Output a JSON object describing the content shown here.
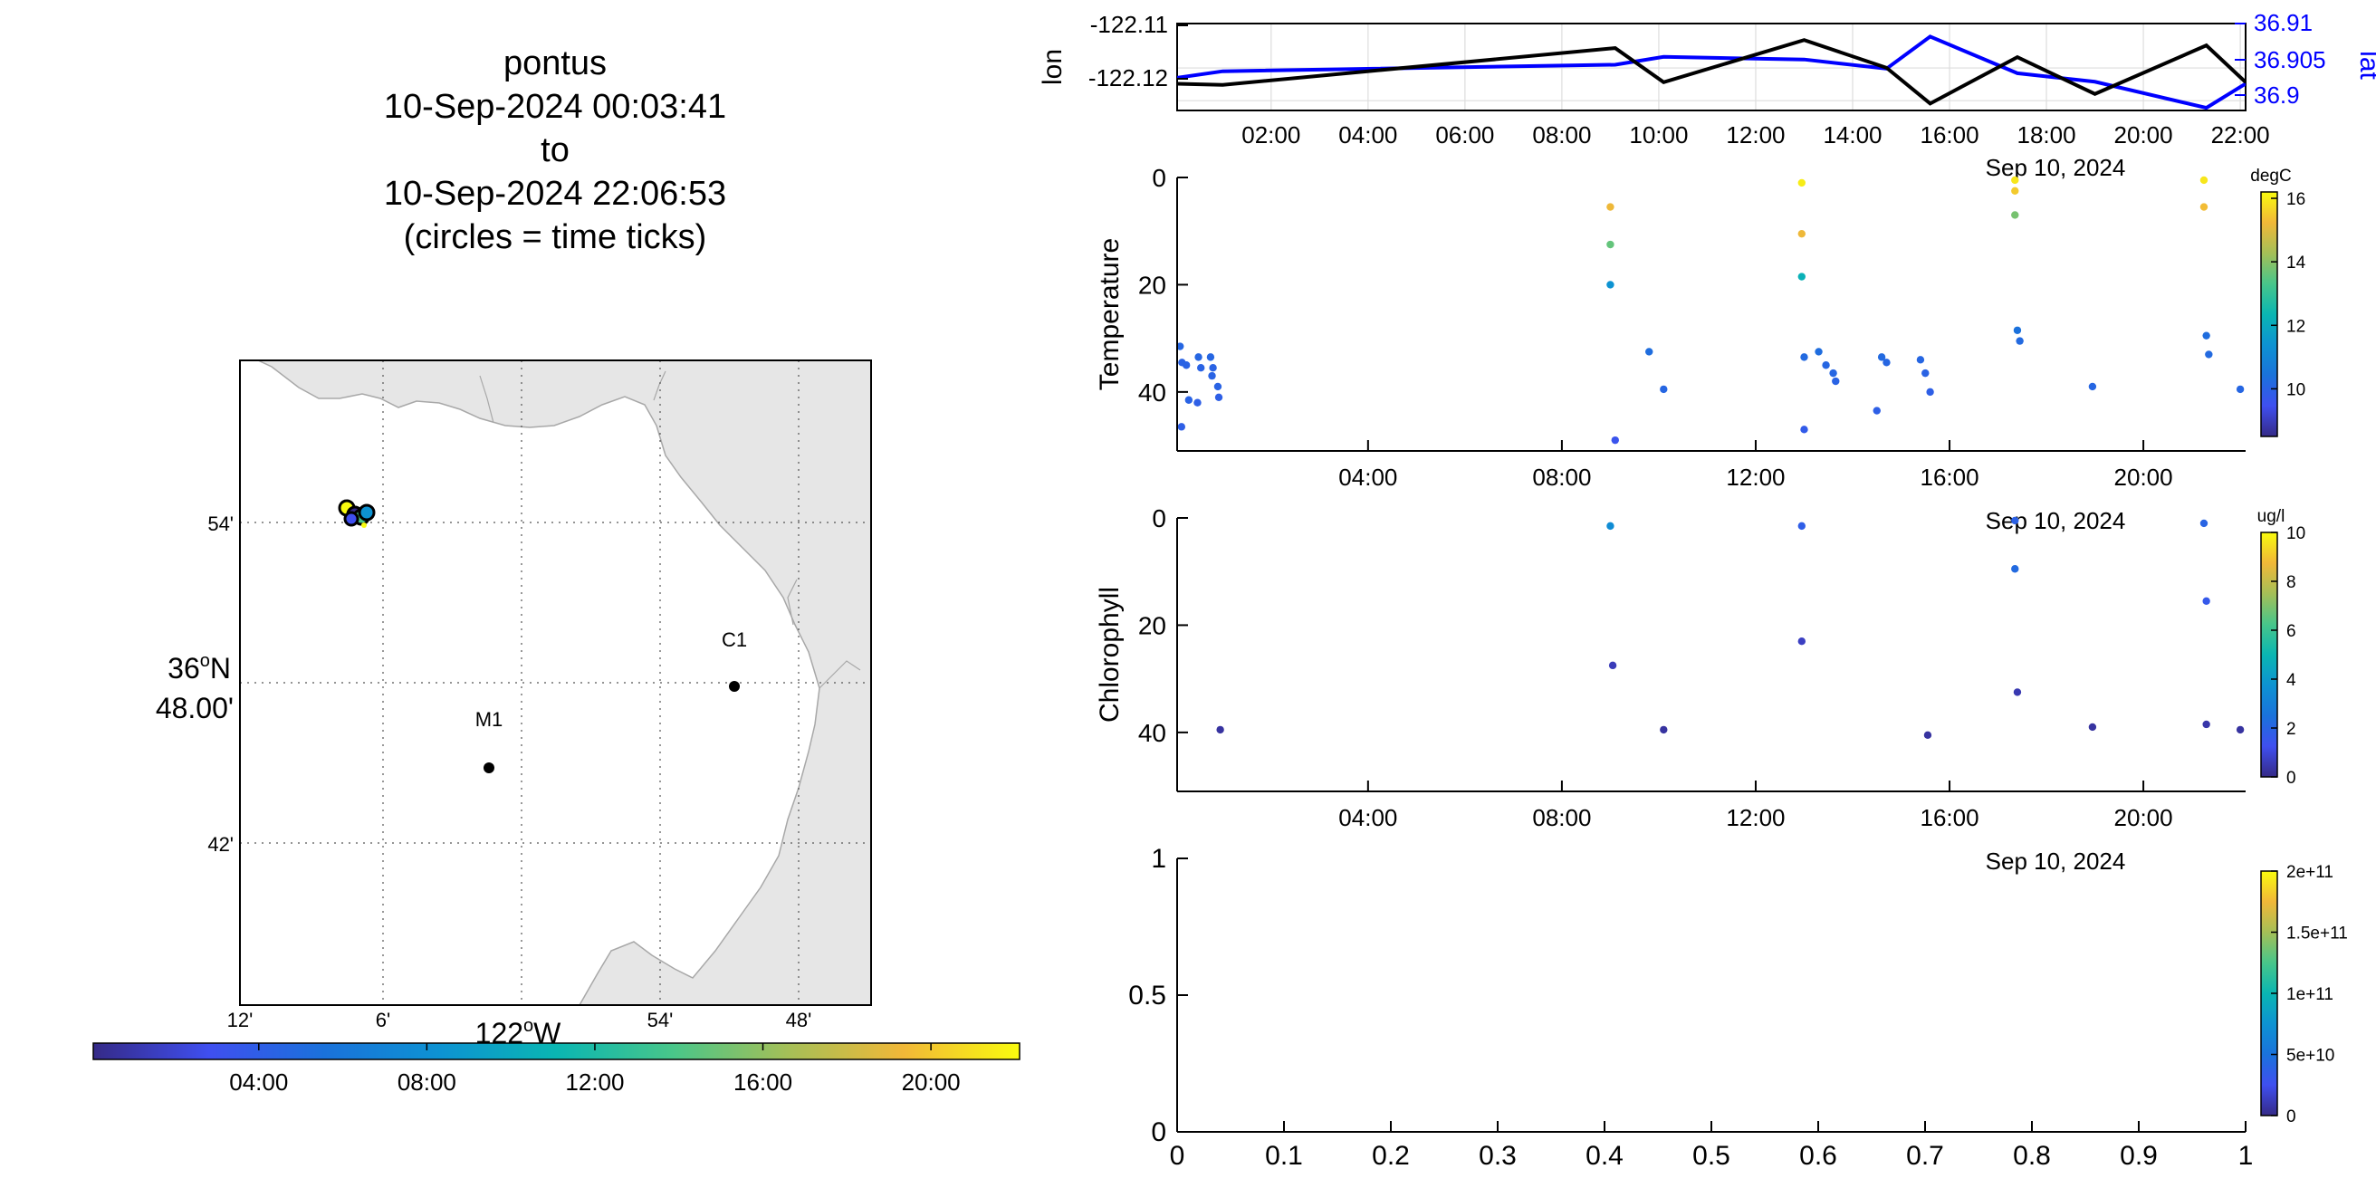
{
  "title_lines": [
    "pontus",
    "10-Sep-2024 00:03:41",
    "to",
    "10-Sep-2024 22:06:53",
    "(circles = time ticks)"
  ],
  "map": {
    "land_color": "#e6e6e6",
    "lat_ticks": [
      "54'",
      "36°N",
      "48.00'",
      "42'"
    ],
    "lon_ticks": [
      "12'",
      "6'",
      "122°W",
      "54'",
      "48'"
    ],
    "stations": [
      {
        "label": "C1",
        "lon": -121.843,
        "lat": 36.799
      },
      {
        "label": "M1",
        "lon": -122.003,
        "lat": 36.749
      }
    ],
    "track_positions": [
      {
        "lon": -122.12,
        "lat": 36.905
      },
      {
        "lon": -122.115,
        "lat": 36.904
      },
      {
        "lon": -122.11,
        "lat": 36.905
      },
      {
        "lon": -122.12,
        "lat": 36.906
      }
    ]
  },
  "time_colorbar": {
    "ticks": [
      "04:00",
      "08:00",
      "12:00",
      "16:00",
      "20:00"
    ],
    "range_hours": [
      0.06,
      22.11
    ]
  },
  "chart_data": [
    {
      "type": "line",
      "title": "",
      "xlabel": "Sep 10, 2024",
      "ylabel": "lon",
      "ylabel_right": "lat",
      "x_ticks": [
        "02:00",
        "04:00",
        "06:00",
        "08:00",
        "10:00",
        "12:00",
        "14:00",
        "16:00",
        "18:00",
        "20:00",
        "22:00"
      ],
      "y_ticks_left": [
        "-122.11",
        "-122.12"
      ],
      "y_ticks_right": [
        "36.91",
        "36.905",
        "36.9"
      ],
      "ylim_left": [
        -122.1245,
        -122.1082
      ],
      "ylim_right": [
        36.8985,
        36.9118
      ],
      "xlim_hours": [
        0.06,
        22.11
      ],
      "series": [
        {
          "name": "lon",
          "axis": "left",
          "color": "#000000",
          "x": [
            0.06,
            1.0,
            9.1,
            10.1,
            13.0,
            14.7,
            15.6,
            17.4,
            19.0,
            21.3,
            22.11
          ],
          "y": [
            -122.1195,
            -122.1197,
            -122.1128,
            -122.1192,
            -122.1113,
            -122.1165,
            -122.1232,
            -122.1145,
            -122.1214,
            -122.1123,
            -122.1192
          ]
        },
        {
          "name": "lat",
          "axis": "right",
          "color": "#0000ff",
          "x": [
            0.06,
            1.0,
            9.1,
            10.1,
            13.0,
            14.7,
            15.6,
            17.4,
            19.0,
            21.3,
            22.11
          ],
          "y": [
            36.9035,
            36.9045,
            36.9055,
            36.9067,
            36.9063,
            36.9049,
            36.9098,
            36.9042,
            36.9029,
            36.8989,
            36.9026
          ]
        }
      ]
    },
    {
      "type": "scatter",
      "title": "",
      "xlabel": "Sep 10, 2024",
      "ylabel": "Temperature",
      "x_ticks": [
        "04:00",
        "08:00",
        "12:00",
        "16:00",
        "20:00"
      ],
      "y_ticks": [
        "0",
        "20",
        "40"
      ],
      "ylim": [
        0,
        51
      ],
      "colorbar": {
        "unit": "degC",
        "ticks": [
          "10",
          "12",
          "14",
          "16"
        ],
        "range": [
          8.5,
          16.2
        ]
      },
      "points": [
        {
          "x": 0.12,
          "depth": 31.5,
          "v": 10.1
        },
        {
          "x": 0.16,
          "depth": 34.5,
          "v": 10.0
        },
        {
          "x": 0.25,
          "depth": 35.0,
          "v": 10.0
        },
        {
          "x": 0.15,
          "depth": 46.5,
          "v": 9.9
        },
        {
          "x": 0.3,
          "depth": 41.5,
          "v": 10.0
        },
        {
          "x": 0.5,
          "depth": 33.5,
          "v": 10.1
        },
        {
          "x": 0.55,
          "depth": 35.5,
          "v": 10.0
        },
        {
          "x": 0.48,
          "depth": 42.0,
          "v": 9.9
        },
        {
          "x": 0.75,
          "depth": 33.5,
          "v": 10.1
        },
        {
          "x": 0.8,
          "depth": 35.5,
          "v": 10.0
        },
        {
          "x": 0.9,
          "depth": 39.0,
          "v": 10.0
        },
        {
          "x": 0.92,
          "depth": 41.0,
          "v": 9.9
        },
        {
          "x": 0.78,
          "depth": 37.0,
          "v": 10.0
        },
        {
          "x": 9.0,
          "depth": 5.5,
          "v": 15.2
        },
        {
          "x": 9.0,
          "depth": 12.5,
          "v": 13.6
        },
        {
          "x": 9.0,
          "depth": 20.0,
          "v": 11.4
        },
        {
          "x": 9.1,
          "depth": 49.0,
          "v": 9.6
        },
        {
          "x": 9.8,
          "depth": 32.5,
          "v": 10.3
        },
        {
          "x": 10.1,
          "depth": 39.5,
          "v": 10.1
        },
        {
          "x": 12.95,
          "depth": 1.0,
          "v": 16.0
        },
        {
          "x": 12.95,
          "depth": 10.5,
          "v": 15.2
        },
        {
          "x": 12.95,
          "depth": 18.5,
          "v": 12.2
        },
        {
          "x": 13.0,
          "depth": 33.5,
          "v": 10.2
        },
        {
          "x": 13.3,
          "depth": 32.5,
          "v": 10.3
        },
        {
          "x": 13.45,
          "depth": 35.0,
          "v": 10.1
        },
        {
          "x": 13.6,
          "depth": 36.5,
          "v": 10.1
        },
        {
          "x": 13.65,
          "depth": 38.0,
          "v": 10.0
        },
        {
          "x": 13.0,
          "depth": 47.0,
          "v": 9.8
        },
        {
          "x": 14.6,
          "depth": 33.5,
          "v": 10.2
        },
        {
          "x": 14.7,
          "depth": 34.5,
          "v": 10.1
        },
        {
          "x": 14.5,
          "depth": 43.5,
          "v": 9.9
        },
        {
          "x": 15.4,
          "depth": 34.0,
          "v": 10.1
        },
        {
          "x": 15.5,
          "depth": 36.5,
          "v": 10.0
        },
        {
          "x": 15.6,
          "depth": 40.0,
          "v": 9.9
        },
        {
          "x": 17.35,
          "depth": 0.5,
          "v": 15.9
        },
        {
          "x": 17.35,
          "depth": 2.5,
          "v": 15.5
        },
        {
          "x": 17.35,
          "depth": 7.0,
          "v": 13.8
        },
        {
          "x": 17.4,
          "depth": 28.5,
          "v": 10.4
        },
        {
          "x": 17.45,
          "depth": 30.5,
          "v": 10.2
        },
        {
          "x": 18.95,
          "depth": 39.0,
          "v": 10.1
        },
        {
          "x": 21.25,
          "depth": 0.5,
          "v": 15.9
        },
        {
          "x": 21.25,
          "depth": 5.5,
          "v": 15.3
        },
        {
          "x": 21.3,
          "depth": 29.5,
          "v": 10.3
        },
        {
          "x": 21.35,
          "depth": 33.0,
          "v": 10.2
        },
        {
          "x": 22.0,
          "depth": 39.5,
          "v": 10.1
        }
      ]
    },
    {
      "type": "scatter",
      "title": "",
      "xlabel": "Sep 10, 2024",
      "ylabel": "Chlorophyll",
      "x_ticks": [
        "04:00",
        "08:00",
        "12:00",
        "16:00",
        "20:00"
      ],
      "y_ticks": [
        "0",
        "20",
        "40"
      ],
      "ylim": [
        0,
        51
      ],
      "colorbar": {
        "unit": "ug/l",
        "ticks": [
          "0",
          "2",
          "4",
          "6",
          "8",
          "10"
        ],
        "range": [
          0,
          10
        ]
      },
      "points": [
        {
          "x": 0.95,
          "depth": 39.5,
          "v": 0.3
        },
        {
          "x": 9.0,
          "depth": 1.5,
          "v": 3.5
        },
        {
          "x": 9.05,
          "depth": 27.5,
          "v": 0.6
        },
        {
          "x": 10.1,
          "depth": 39.5,
          "v": 0.3
        },
        {
          "x": 12.95,
          "depth": 1.5,
          "v": 1.8
        },
        {
          "x": 12.95,
          "depth": 23.0,
          "v": 0.7
        },
        {
          "x": 15.55,
          "depth": 40.5,
          "v": 0.3
        },
        {
          "x": 17.35,
          "depth": 0.5,
          "v": 1.9
        },
        {
          "x": 17.35,
          "depth": 9.5,
          "v": 2.2
        },
        {
          "x": 17.4,
          "depth": 32.5,
          "v": 0.5
        },
        {
          "x": 18.95,
          "depth": 39.0,
          "v": 0.3
        },
        {
          "x": 21.25,
          "depth": 1.0,
          "v": 2.0
        },
        {
          "x": 21.3,
          "depth": 15.5,
          "v": 1.6
        },
        {
          "x": 21.3,
          "depth": 38.5,
          "v": 0.4
        },
        {
          "x": 22.0,
          "depth": 39.5,
          "v": 0.3
        }
      ]
    },
    {
      "type": "scatter",
      "title": "",
      "xlabel": "",
      "ylabel": "",
      "x_ticks": [
        "0",
        "0.1",
        "0.2",
        "0.3",
        "0.4",
        "0.5",
        "0.6",
        "0.7",
        "0.8",
        "0.9",
        "1"
      ],
      "y_ticks": [
        "0",
        "0.5",
        "1"
      ],
      "xlim": [
        0,
        1
      ],
      "ylim": [
        0,
        1
      ],
      "colorbar": {
        "unit": "",
        "ticks": [
          "0",
          "5e+10",
          "1e+11",
          "1.5e+11",
          "2e+11"
        ],
        "range": [
          0,
          200000000000
        ]
      },
      "points": []
    }
  ]
}
